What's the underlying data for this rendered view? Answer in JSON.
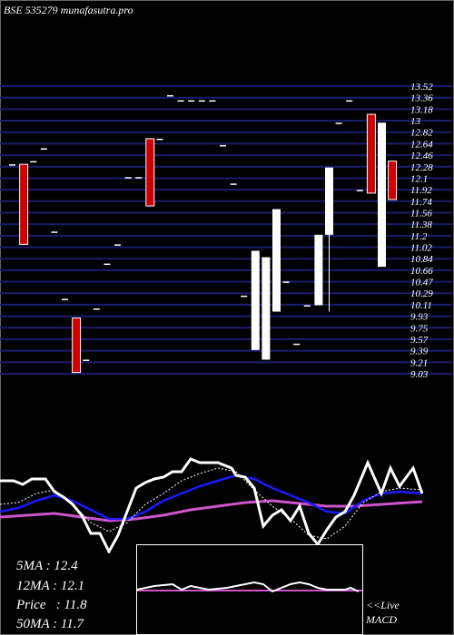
{
  "header": "BSE 535279 munafasutra.pro",
  "colors": {
    "background": "#000000",
    "grid": "#1c1c6e",
    "bull": "#ffffff",
    "bear": "#cc0000",
    "ma_blue": "#1a1aff",
    "ma_purple": "#cc55cc",
    "macd_line": "#ffffff"
  },
  "chart_data": {
    "type": "candlestick",
    "y_ticks": [
      "13.52",
      "13.36",
      "13.18",
      "13",
      "12.82",
      "12.64",
      "12.46",
      "12.28",
      "12.1",
      "11.92",
      "11.74",
      "11.56",
      "11.38",
      "11.2",
      "11.02",
      "10.84",
      "10.66",
      "10.47",
      "10.29",
      "10.11",
      "9.93",
      "9.75",
      "9.57",
      "9.39",
      "9.21",
      "9.03"
    ],
    "ylim": [
      9.03,
      13.52
    ],
    "candles": [
      {
        "o": 12.3,
        "c": 12.3,
        "h": 12.3,
        "l": 12.3
      },
      {
        "o": 12.3,
        "c": 11.05,
        "h": 12.3,
        "l": 11.05
      },
      {
        "o": 12.35,
        "c": 12.35,
        "h": 12.35,
        "l": 12.35
      },
      {
        "o": 12.55,
        "c": 12.55,
        "h": 12.55,
        "l": 12.55
      },
      {
        "o": 11.25,
        "c": 11.25,
        "h": 11.25,
        "l": 11.25
      },
      {
        "o": 10.2,
        "c": 10.2,
        "h": 10.2,
        "l": 10.2
      },
      {
        "o": 9.9,
        "c": 9.05,
        "h": 9.9,
        "l": 9.05
      },
      {
        "o": 9.25,
        "c": 9.25,
        "h": 9.25,
        "l": 9.25
      },
      {
        "o": 10.05,
        "c": 10.05,
        "h": 10.05,
        "l": 10.05
      },
      {
        "o": 10.75,
        "c": 10.75,
        "h": 10.75,
        "l": 10.75
      },
      {
        "o": 11.05,
        "c": 11.05,
        "h": 11.05,
        "l": 11.05
      },
      {
        "o": 12.1,
        "c": 12.1,
        "h": 12.1,
        "l": 12.1
      },
      {
        "o": 12.1,
        "c": 12.1,
        "h": 12.1,
        "l": 12.1
      },
      {
        "o": 12.7,
        "c": 11.65,
        "h": 12.7,
        "l": 11.65
      },
      {
        "o": 12.7,
        "c": 12.7,
        "h": 12.7,
        "l": 12.7
      },
      {
        "o": 13.38,
        "c": 13.38,
        "h": 13.38,
        "l": 13.38
      },
      {
        "o": 13.3,
        "c": 13.3,
        "h": 13.3,
        "l": 13.3
      },
      {
        "o": 13.3,
        "c": 13.3,
        "h": 13.3,
        "l": 13.3
      },
      {
        "o": 13.3,
        "c": 13.3,
        "h": 13.3,
        "l": 13.3
      },
      {
        "o": 13.3,
        "c": 13.3,
        "h": 13.3,
        "l": 13.3
      },
      {
        "o": 12.6,
        "c": 12.6,
        "h": 12.6,
        "l": 12.6
      },
      {
        "o": 12.0,
        "c": 12.0,
        "h": 12.0,
        "l": 12.0
      },
      {
        "o": 10.25,
        "c": 10.25,
        "h": 10.25,
        "l": 10.25
      },
      {
        "o": 9.4,
        "c": 10.95,
        "h": 10.95,
        "l": 9.4
      },
      {
        "o": 9.25,
        "c": 10.85,
        "h": 10.85,
        "l": 9.25
      },
      {
        "o": 10.0,
        "c": 11.6,
        "h": 11.6,
        "l": 10.0
      },
      {
        "o": 10.47,
        "c": 10.47,
        "h": 10.47,
        "l": 10.47
      },
      {
        "o": 9.5,
        "c": 9.5,
        "h": 9.5,
        "l": 9.5
      },
      {
        "o": 10.1,
        "c": 10.1,
        "h": 10.1,
        "l": 10.1
      },
      {
        "o": 10.1,
        "c": 11.2,
        "h": 11.2,
        "l": 10.1
      },
      {
        "o": 11.2,
        "c": 12.25,
        "h": 12.25,
        "l": 10.0
      },
      {
        "o": 12.95,
        "c": 12.95,
        "h": 12.95,
        "l": 12.95
      },
      {
        "o": 13.3,
        "c": 13.3,
        "h": 13.3,
        "l": 13.3
      },
      {
        "o": 11.9,
        "c": 11.9,
        "h": 11.9,
        "l": 11.9
      },
      {
        "o": 13.08,
        "c": 11.85,
        "h": 13.08,
        "l": 11.85
      },
      {
        "o": 10.7,
        "c": 12.95,
        "h": 12.95,
        "l": 10.7
      },
      {
        "o": 12.35,
        "c": 11.75,
        "h": 12.35,
        "l": 11.75
      }
    ],
    "indicators": {
      "ma5": 0.5,
      "ma12": 0.5,
      "ma50": 0.5,
      "price": 0.5
    },
    "stats": [
      {
        "label": "5MA",
        "value": "12.4"
      },
      {
        "label": "12MA",
        "value": "12.1"
      },
      {
        "label": "Price",
        "value": "11.8"
      },
      {
        "label": "50MA",
        "value": "11.7"
      }
    ],
    "macd_label_1": "<<Live",
    "macd_label_2": "MACD"
  }
}
